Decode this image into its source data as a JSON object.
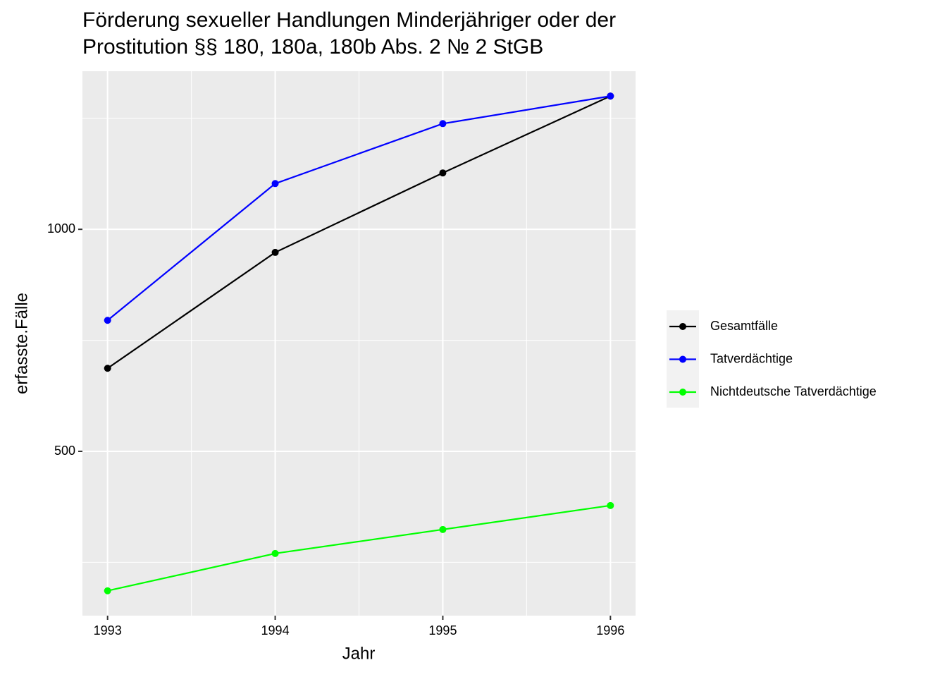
{
  "chart_data": {
    "type": "line",
    "title": [
      "Förderung sexueller Handlungen Minderjähriger oder der",
      "Prostitution §§ 180, 180a, 180b Abs. 2 № 2 StGB"
    ],
    "x_label": "Jahr",
    "y_label": "erfasste.Fälle",
    "x": [
      1993,
      1994,
      1995,
      1996
    ],
    "series": [
      {
        "name": "Gesamtfälle",
        "color": "#000000",
        "values": [
          687,
          948,
          1127,
          1300
        ]
      },
      {
        "name": "Tatverdächtige",
        "color": "#0000ff",
        "values": [
          795,
          1103,
          1238,
          1300
        ]
      },
      {
        "name": "Nichtdeutsche Tatverdächtige",
        "color": "#00ff00",
        "values": [
          186,
          270,
          324,
          378
        ]
      }
    ],
    "xlim": [
      1992.85,
      1996.15
    ],
    "xticks": [
      1993,
      1994,
      1995,
      1996
    ],
    "ylim": [
      130,
      1356
    ],
    "yticks": [
      500,
      1000
    ],
    "grid": true,
    "legend": "right"
  }
}
